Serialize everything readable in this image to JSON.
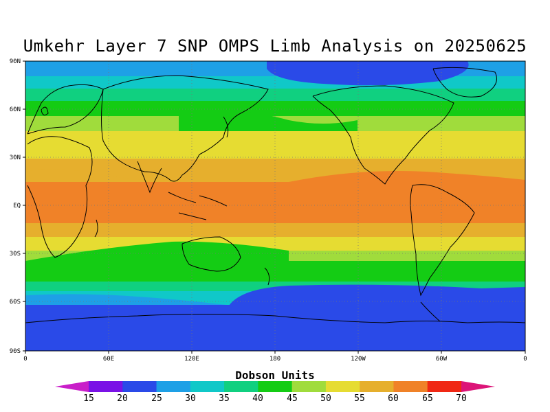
{
  "title": "Umkehr Layer 7 SNP OMPS Limb Analysis on 20250625",
  "lat_labels": [
    "90N",
    "60N",
    "30N",
    "EQ",
    "30S",
    "60S",
    "90S"
  ],
  "lon_labels": [
    "0",
    "60E",
    "120E",
    "180",
    "120W",
    "60W",
    "0"
  ],
  "colorbar": {
    "title": "Dobson Units",
    "levels": [
      "15",
      "20",
      "25",
      "30",
      "35",
      "40",
      "45",
      "50",
      "55",
      "60",
      "65",
      "70"
    ],
    "colors": [
      "#c91ec9",
      "#7a12e6",
      "#2a4ae8",
      "#1ea0e6",
      "#10c8c8",
      "#10d080",
      "#14cc14",
      "#a0dc3c",
      "#e6dc32",
      "#e6af2d",
      "#f08228",
      "#f02814",
      "#dc1478"
    ]
  },
  "map_data": {
    "type": "filled-contour",
    "units": "Dobson Units",
    "bands": [
      {
        "lat_range": [
          "90N",
          "75N"
        ],
        "value_range": [
          25,
          30
        ]
      },
      {
        "lat_range": [
          "75N",
          "62N"
        ],
        "value_range": [
          35,
          40
        ]
      },
      {
        "lat_range": [
          "62N",
          "45N"
        ],
        "value_range": [
          40,
          50
        ]
      },
      {
        "lat_range": [
          "45N",
          "25N"
        ],
        "value_range": [
          50,
          55
        ]
      },
      {
        "lat_range": [
          "25N",
          "15S"
        ],
        "value_range": [
          55,
          65
        ]
      },
      {
        "lat_range": [
          "15S",
          "28S"
        ],
        "value_range": [
          50,
          55
        ]
      },
      {
        "lat_range": [
          "28S",
          "45S"
        ],
        "value_range": [
          40,
          45
        ]
      },
      {
        "lat_range": [
          "45S",
          "90S"
        ],
        "value_range": [
          20,
          30
        ]
      }
    ]
  }
}
